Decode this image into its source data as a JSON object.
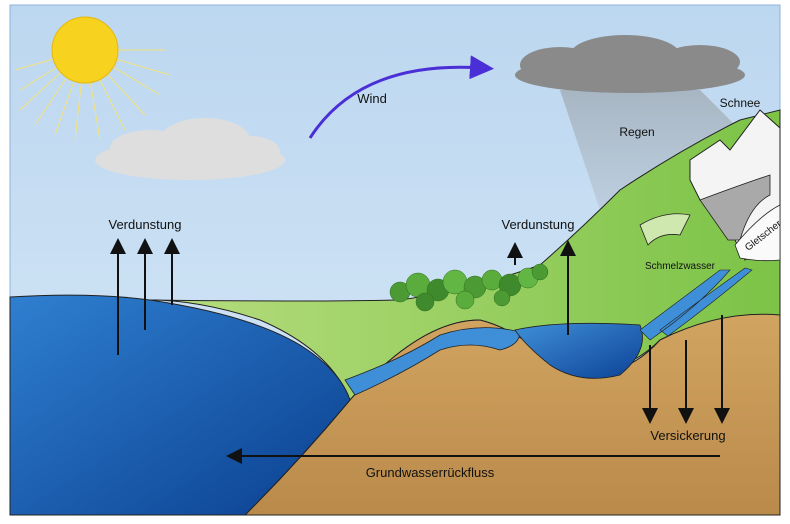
{
  "labels": {
    "wind": "Wind",
    "snow": "Schnee",
    "rain": "Regen",
    "evaporation_sea": "Verdunstung",
    "evaporation_lake": "Verdunstung",
    "glacier": "Gletscher",
    "meltwater": "Schmelzwasser",
    "infiltration": "Versickerung",
    "groundwater_return": "Grundwasserrückfluss"
  }
}
